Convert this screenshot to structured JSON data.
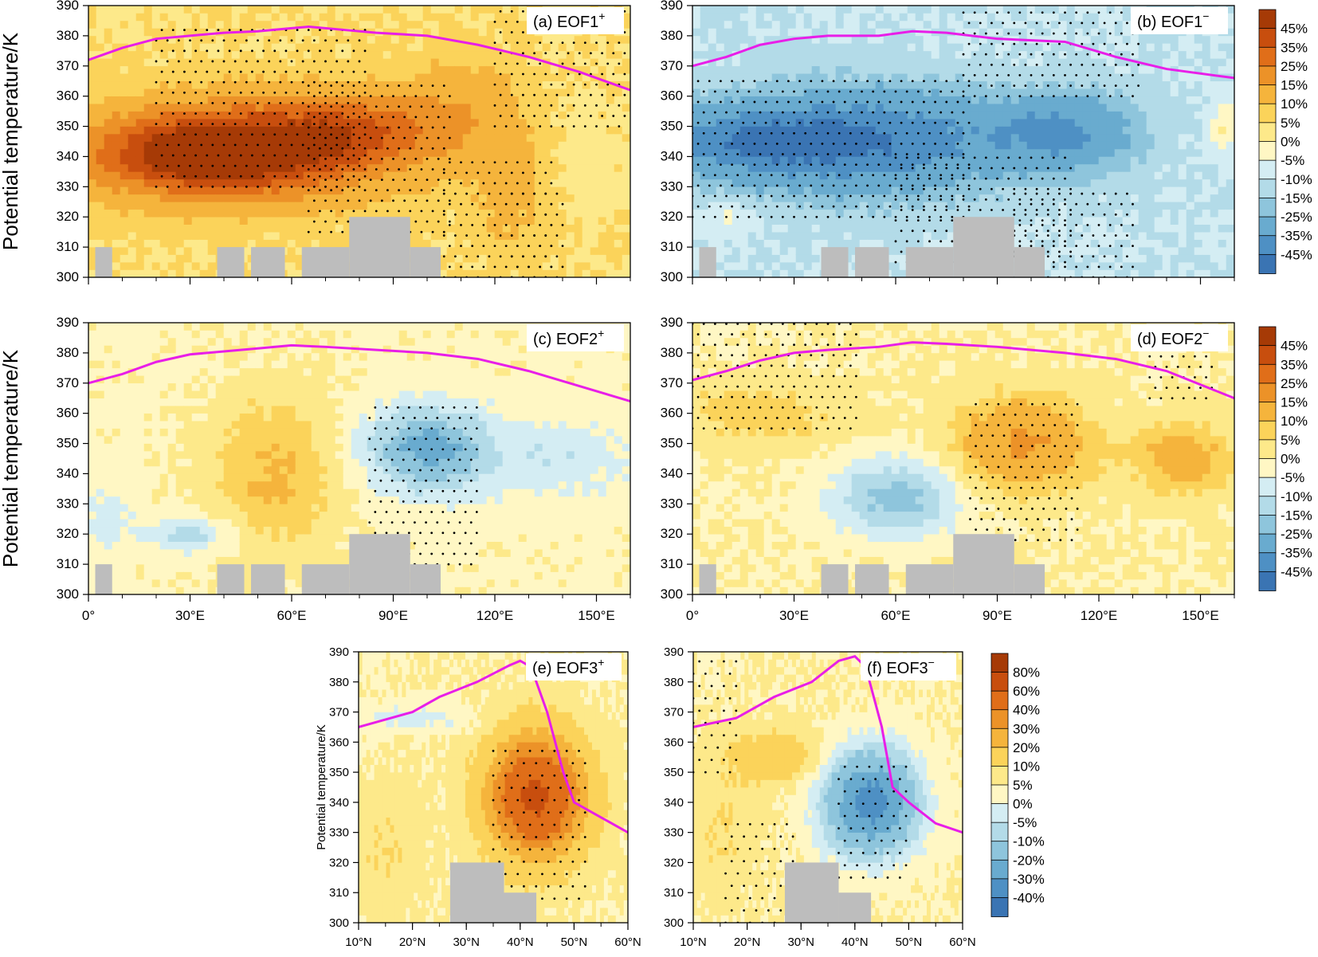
{
  "colors": {
    "magenta_line": "#e81ee8",
    "topography": "#bdbdbd",
    "pos": [
      "#fff7c4",
      "#fde98a",
      "#fbd35a",
      "#f5b43c",
      "#ec9228",
      "#e06e19",
      "#c84e0e",
      "#a63a06"
    ],
    "neg": [
      "#d4edf3",
      "#b3dbe8",
      "#8ec5dc",
      "#69abcf",
      "#4e90c4",
      "#3a74b3",
      "#1f559a"
    ]
  },
  "chart_data": [
    {
      "id": "a",
      "type": "heatmap",
      "panel_label": "(a) EOF1",
      "superscript": "+",
      "ylabel": "Potential temperature/K",
      "x_ticks": [
        "0°",
        "30°E",
        "60°E",
        "90°E",
        "120°E",
        "150°E"
      ],
      "xlim": [
        0,
        160
      ],
      "y_ticks": [
        "300",
        "310",
        "320",
        "330",
        "340",
        "350",
        "360",
        "370",
        "380",
        "390"
      ],
      "ylim": [
        300,
        390
      ],
      "tropopause": [
        [
          0,
          372
        ],
        [
          10,
          376
        ],
        [
          20,
          379
        ],
        [
          30,
          380
        ],
        [
          40,
          381
        ],
        [
          50,
          381.5
        ],
        [
          60,
          382.5
        ],
        [
          65,
          383
        ],
        [
          75,
          382
        ],
        [
          85,
          381
        ],
        [
          100,
          380
        ],
        [
          115,
          377
        ],
        [
          130,
          373
        ],
        [
          145,
          368
        ],
        [
          160,
          362
        ]
      ],
      "anomalies": [
        [
          50,
          343,
          38,
          14,
          45
        ],
        [
          30,
          340,
          30,
          12,
          30
        ],
        [
          80,
          350,
          20,
          10,
          20
        ],
        [
          110,
          355,
          15,
          15,
          12
        ],
        [
          125,
          330,
          10,
          20,
          8
        ],
        [
          147,
          340,
          8,
          15,
          -4
        ]
      ],
      "bg": 10,
      "stipple": [
        [
          20,
          80,
          330,
          385
        ],
        [
          65,
          105,
          315,
          365
        ],
        [
          105,
          135,
          300,
          340
        ],
        [
          120,
          165,
          350,
          390
        ],
        [
          125,
          140,
          300,
          330
        ]
      ]
    },
    {
      "id": "b",
      "type": "heatmap",
      "panel_label": "(b) EOF1",
      "superscript": "−",
      "ylabel": "",
      "x_ticks": [
        "0°",
        "30°E",
        "60°E",
        "90°E",
        "120°E",
        "150°E"
      ],
      "xlim": [
        0,
        160
      ],
      "y_ticks": [
        "300",
        "310",
        "320",
        "330",
        "340",
        "350",
        "360",
        "370",
        "380",
        "390"
      ],
      "ylim": [
        300,
        390
      ],
      "tropopause": [
        [
          0,
          370
        ],
        [
          10,
          373
        ],
        [
          20,
          377
        ],
        [
          30,
          379
        ],
        [
          40,
          380
        ],
        [
          55,
          380
        ],
        [
          65,
          381.5
        ],
        [
          75,
          381
        ],
        [
          90,
          379
        ],
        [
          110,
          378
        ],
        [
          125,
          373
        ],
        [
          140,
          369
        ],
        [
          160,
          366
        ]
      ],
      "anomalies": [
        [
          50,
          345,
          40,
          16,
          -30
        ],
        [
          15,
          345,
          25,
          10,
          -18
        ],
        [
          110,
          348,
          20,
          12,
          -20
        ],
        [
          10,
          320,
          8,
          6,
          6
        ],
        [
          158,
          350,
          6,
          8,
          10
        ]
      ],
      "bg": -5,
      "stipple": [
        [
          0,
          80,
          320,
          366
        ],
        [
          60,
          110,
          305,
          340
        ],
        [
          80,
          130,
          360,
          390
        ],
        [
          95,
          130,
          300,
          330
        ]
      ]
    },
    {
      "id": "c",
      "type": "heatmap",
      "panel_label": "(c) EOF2",
      "superscript": "+",
      "ylabel": "Potential temperature/K",
      "x_ticks": [
        "0°",
        "30°E",
        "60°E",
        "90°E",
        "120°E",
        "150°E"
      ],
      "xlim": [
        0,
        160
      ],
      "y_ticks": [
        "300",
        "310",
        "320",
        "330",
        "340",
        "350",
        "360",
        "370",
        "380",
        "390"
      ],
      "ylim": [
        300,
        390
      ],
      "tropopause": [
        [
          0,
          370
        ],
        [
          10,
          373
        ],
        [
          20,
          377
        ],
        [
          30,
          379.5
        ],
        [
          40,
          380.5
        ],
        [
          50,
          381.5
        ],
        [
          60,
          382.5
        ],
        [
          70,
          382
        ],
        [
          85,
          381
        ],
        [
          100,
          380
        ],
        [
          115,
          378
        ],
        [
          130,
          374
        ],
        [
          145,
          369
        ],
        [
          160,
          364
        ]
      ],
      "anomalies": [
        [
          100,
          348,
          18,
          14,
          -22
        ],
        [
          55,
          340,
          18,
          25,
          12
        ],
        [
          30,
          320,
          12,
          6,
          -12
        ],
        [
          5,
          325,
          8,
          12,
          -6
        ],
        [
          140,
          345,
          20,
          12,
          -8
        ]
      ],
      "bg": 4,
      "stipple": [
        [
          83,
          115,
          310,
          365
        ]
      ]
    },
    {
      "id": "d",
      "type": "heatmap",
      "panel_label": "(d) EOF2",
      "superscript": "−",
      "ylabel": "",
      "x_ticks": [
        "0°",
        "30°E",
        "60°E",
        "90°E",
        "120°E",
        "150°E"
      ],
      "xlim": [
        0,
        160
      ],
      "y_ticks": [
        "300",
        "310",
        "320",
        "330",
        "340",
        "350",
        "360",
        "370",
        "380",
        "390"
      ],
      "ylim": [
        300,
        390
      ],
      "tropopause": [
        [
          0,
          371
        ],
        [
          10,
          374
        ],
        [
          20,
          377.5
        ],
        [
          30,
          380
        ],
        [
          40,
          381
        ],
        [
          55,
          382
        ],
        [
          65,
          383.5
        ],
        [
          75,
          383
        ],
        [
          90,
          382
        ],
        [
          110,
          380
        ],
        [
          125,
          378
        ],
        [
          140,
          374
        ],
        [
          160,
          365
        ]
      ],
      "anomalies": [
        [
          98,
          350,
          18,
          14,
          22
        ],
        [
          60,
          332,
          18,
          12,
          -18
        ],
        [
          145,
          345,
          14,
          12,
          14
        ],
        [
          20,
          360,
          25,
          10,
          8
        ]
      ],
      "bg": 5,
      "stipple": [
        [
          0,
          50,
          355,
          392
        ],
        [
          82,
          115,
          318,
          365
        ],
        [
          135,
          155,
          365,
          385
        ]
      ]
    },
    {
      "id": "e",
      "type": "heatmap",
      "panel_label": "(e) EOF3",
      "superscript": "+",
      "ylabel": "Potential temperature/K",
      "x_ticks": [
        "10°N",
        "20°N",
        "30°N",
        "40°N",
        "50°N",
        "60°N"
      ],
      "xlim": [
        10,
        60
      ],
      "y_ticks": [
        "300",
        "310",
        "320",
        "330",
        "340",
        "350",
        "360",
        "370",
        "380",
        "390"
      ],
      "ylim": [
        300,
        390
      ],
      "tropopause": [
        [
          10,
          365
        ],
        [
          20,
          370
        ],
        [
          25,
          375
        ],
        [
          32,
          380
        ],
        [
          38,
          385.5
        ],
        [
          40,
          387
        ],
        [
          42,
          385
        ],
        [
          45,
          370
        ],
        [
          48,
          350
        ],
        [
          50,
          340
        ],
        [
          55,
          335
        ],
        [
          60,
          330
        ]
      ],
      "anomalies": [
        [
          43,
          342,
          8,
          18,
          60
        ],
        [
          20,
          368,
          10,
          4,
          -8
        ],
        [
          15,
          325,
          6,
          20,
          5
        ]
      ],
      "bg": 5,
      "stipple": [
        [
          35,
          51,
          308,
          358
        ]
      ]
    },
    {
      "id": "f",
      "type": "heatmap",
      "panel_label": "(f) EOF3",
      "superscript": "−",
      "ylabel": "",
      "x_ticks": [
        "10°N",
        "20°N",
        "30°N",
        "40°N",
        "50°N",
        "60°N"
      ],
      "xlim": [
        10,
        60
      ],
      "y_ticks": [
        "300",
        "310",
        "320",
        "330",
        "340",
        "350",
        "360",
        "370",
        "380",
        "390"
      ],
      "ylim": [
        300,
        390
      ],
      "tropopause": [
        [
          10,
          365
        ],
        [
          18,
          368
        ],
        [
          25,
          375
        ],
        [
          32,
          380
        ],
        [
          37,
          387
        ],
        [
          40,
          388.5
        ],
        [
          42,
          385
        ],
        [
          45,
          365
        ],
        [
          47,
          345
        ],
        [
          50,
          340
        ],
        [
          55,
          333
        ],
        [
          60,
          330
        ]
      ],
      "anomalies": [
        [
          43,
          340,
          8,
          16,
          -40
        ],
        [
          25,
          355,
          8,
          8,
          12
        ],
        [
          15,
          330,
          6,
          20,
          5
        ]
      ],
      "bg": 5,
      "stipple": [
        [
          10,
          18,
          350,
          392
        ],
        [
          16,
          28,
          300,
          335
        ],
        [
          37,
          50,
          315,
          355
        ]
      ]
    }
  ],
  "colorbars": [
    {
      "id": "cb1",
      "labels": [
        "45%",
        "35%",
        "25%",
        "15%",
        "10%",
        "5%",
        "0%",
        "-5%",
        "-10%",
        "-15%",
        "-25%",
        "-35%",
        "-45%"
      ]
    },
    {
      "id": "cb2",
      "labels": [
        "45%",
        "35%",
        "25%",
        "15%",
        "10%",
        "5%",
        "0%",
        "-5%",
        "-10%",
        "-15%",
        "-25%",
        "-35%",
        "-45%"
      ]
    },
    {
      "id": "cb3",
      "labels": [
        "80%",
        "60%",
        "40%",
        "30%",
        "20%",
        "10%",
        "5%",
        "0%",
        "-5%",
        "-10%",
        "-20%",
        "-30%",
        "-40%"
      ]
    }
  ]
}
